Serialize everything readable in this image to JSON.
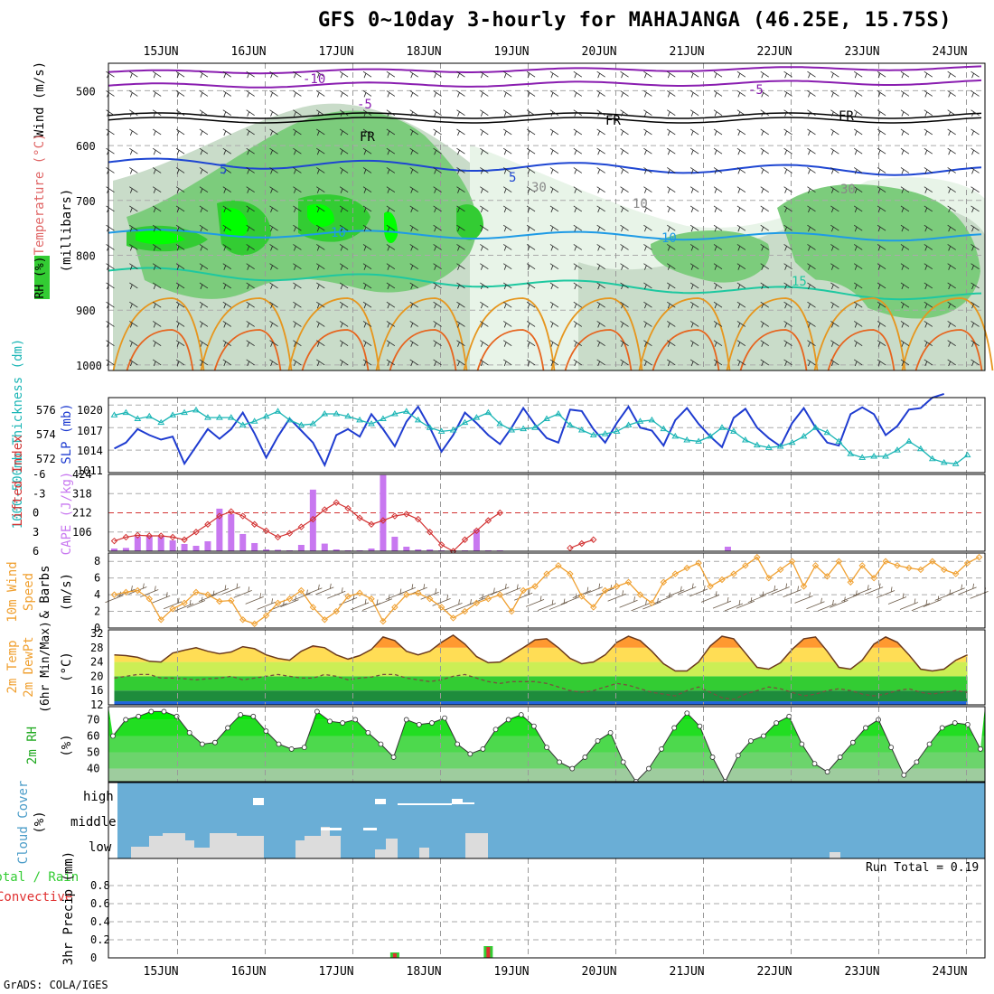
{
  "title": "GFS 0~10day 3-hourly for MAHAJANGA (46.25E, 15.75S)",
  "footer": "GrADS: COLA/IGES",
  "colors": {
    "rh_fill": [
      "#e8f4e8",
      "#c9dcc9",
      "#7ccc7c",
      "#33cc33",
      "#00ff00"
    ],
    "temp_contour_cold": "#8a1eb0",
    "temp_contour_freeze": "#000000",
    "temp_contour_5": "#1e46d2",
    "temp_contour_10": "#1e9be6",
    "temp_contour_15": "#1ec8a0",
    "temp_contour_20": "#e6961e",
    "temp_contour_25": "#e6641e",
    "slp": "#1f3cd0",
    "thickness": "#1ab5b5",
    "lifted_index": "#d23232",
    "cape": "#c878f0",
    "wind": "#f0a030",
    "cloud_bg": "#6aaed6",
    "cloud": "#dcdcdc",
    "rh2m": "#22cc22",
    "precip_total": "#33cc33",
    "precip_conv": "#e03030"
  },
  "chart_data": [
    {
      "type": "contour",
      "name": "upper-air",
      "ylabel_parts": [
        "RH (%)",
        "Temperature (°C)",
        "Wind (m/s)"
      ],
      "ylabel2": "(millibars)",
      "x_dates": [
        "15JUN",
        "16JUN",
        "17JUN",
        "18JUN",
        "19JUN",
        "20JUN",
        "21JUN",
        "22JUN",
        "23JUN",
        "24JUN"
      ],
      "y_ticks": [
        "500",
        "600",
        "700",
        "800",
        "900",
        "1000"
      ],
      "contour_labels": [
        "-10",
        "-5",
        "FR",
        "FR",
        "FR",
        "5",
        "5",
        "10",
        "10",
        "15",
        "30",
        "10",
        "30"
      ]
    },
    {
      "type": "line",
      "name": "slp-thickness",
      "ylabel_left": "1000-500mb Thickness (dm)",
      "ylabel_right": "SLP (mb)",
      "left_ticks": [
        "576",
        "574",
        "572"
      ],
      "right_ticks": [
        "1020",
        "1017",
        "1014",
        "1011"
      ],
      "slp_ylim": [
        1011,
        1021
      ],
      "slp": [
        1014.2,
        1015.0,
        1016.8,
        1016.0,
        1015.4,
        1015.8,
        1012.2,
        1014.5,
        1016.8,
        1015.5,
        1016.8,
        1019.0,
        1016.2,
        1013.0,
        1015.8,
        1018.2,
        1016.6,
        1015.0,
        1012.0,
        1016.0,
        1016.8,
        1015.8,
        1018.8,
        1016.8,
        1014.5,
        1017.8,
        1019.8,
        1017.0,
        1013.8,
        1016.0,
        1019.0,
        1017.6,
        1016.0,
        1014.8,
        1017.0,
        1019.6,
        1017.4,
        1015.6,
        1015.0,
        1019.4,
        1019.2,
        1016.8,
        1015.0,
        1017.6,
        1019.8,
        1017.0,
        1016.6,
        1014.6,
        1018.0,
        1019.6,
        1017.5,
        1015.8,
        1014.4,
        1018.3,
        1019.5,
        1017.0,
        1015.6,
        1014.5,
        1017.6,
        1019.6,
        1017.0,
        1015.0,
        1014.6,
        1018.8,
        1019.7,
        1018.8,
        1016.0,
        1017.2,
        1019.4,
        1019.6,
        1021.0,
        1021.5
      ],
      "thickness_ylim": [
        571,
        577
      ],
      "thickness": [
        575.6,
        575.8,
        575.3,
        575.5,
        575.0,
        575.6,
        575.8,
        576.0,
        575.4,
        575.4,
        575.4,
        574.8,
        575.1,
        575.5,
        575.9,
        575.2,
        574.8,
        574.9,
        575.7,
        575.7,
        575.5,
        575.2,
        574.9,
        575.3,
        575.7,
        575.9,
        575.2,
        574.6,
        574.3,
        574.4,
        575.0,
        575.4,
        575.8,
        574.9,
        574.4,
        574.5,
        574.6,
        575.3,
        575.7,
        574.8,
        574.4,
        574.0,
        574.1,
        574.3,
        574.8,
        575.1,
        575.2,
        574.5,
        573.9,
        573.6,
        573.5,
        573.9,
        574.6,
        574.3,
        573.6,
        573.2,
        573.0,
        573.1,
        573.4,
        573.9,
        574.6,
        574.2,
        573.5,
        572.5,
        572.2,
        572.3,
        572.3,
        572.8,
        573.5,
        572.9,
        572.1,
        571.8,
        571.7,
        572.4
      ]
    },
    {
      "type": "bar+line",
      "name": "cape-lifted-index",
      "ylabel_left": "Lifted Index",
      "ylabel_right": "CAPE (J/kg)",
      "li_ticks": [
        "-6",
        "-3",
        "0",
        "3",
        "6"
      ],
      "li_ylim": [
        -6,
        6
      ],
      "cape_ticks": [
        "424",
        "318",
        "212",
        "106"
      ],
      "cape_ylim": [
        0,
        424
      ],
      "lifted_index": [
        4.4,
        3.8,
        3.5,
        3.6,
        3.6,
        3.8,
        4.2,
        3.0,
        1.8,
        0.5,
        -0.2,
        0.5,
        1.8,
        2.8,
        3.8,
        3.2,
        2.2,
        1.0,
        -0.5,
        -1.6,
        -0.7,
        0.8,
        1.8,
        1.2,
        0.5,
        0.2,
        1.0,
        3.0,
        5.0,
        6.0,
        4.2,
        2.8,
        1.2,
        0.0,
        null,
        null,
        null,
        null,
        null,
        5.5,
        4.8,
        4.2
      ],
      "cape": [
        15,
        18,
        82,
        84,
        80,
        60,
        40,
        30,
        55,
        235,
        205,
        95,
        45,
        10,
        8,
        5,
        35,
        340,
        42,
        10,
        5,
        5,
        15,
        420,
        80,
        25,
        10,
        10,
        5,
        5,
        5,
        120,
        5,
        5,
        0,
        0,
        0,
        0,
        0,
        0,
        0,
        0,
        0,
        0,
        0,
        0,
        0,
        0,
        0,
        0,
        0,
        0,
        0,
        0,
        0,
        0,
        0,
        0,
        0,
        0,
        0,
        0,
        0,
        0,
        0,
        0,
        0,
        0,
        0,
        0,
        0,
        0,
        0,
        0
      ],
      "cape_late": [
        [
          52.5,
          25
        ]
      ]
    },
    {
      "type": "line",
      "name": "10m-wind",
      "ylabel_parts": [
        "10m Wind",
        "Speed",
        "& Barbs"
      ],
      "ylabel_unit": "(m/s)",
      "ylim": [
        0,
        9
      ],
      "y_ticks": [
        "8",
        "6",
        "4",
        "2",
        "0"
      ],
      "speed": [
        4.0,
        4.3,
        4.5,
        3.5,
        1.0,
        2.3,
        3.0,
        4.3,
        4.0,
        3.2,
        3.3,
        1.0,
        0.5,
        1.5,
        3.0,
        3.5,
        4.5,
        2.5,
        1.0,
        2.0,
        3.8,
        4.2,
        3.5,
        0.8,
        2.5,
        4.0,
        4.2,
        3.5,
        2.5,
        1.2,
        2.0,
        3.0,
        3.5,
        4.0,
        2.0,
        4.5,
        5.0,
        6.5,
        7.5,
        6.5,
        3.8,
        2.5,
        4.5,
        5.0,
        5.5,
        4.0,
        3.0,
        5.5,
        6.5,
        7.2,
        7.8,
        5.0,
        5.8,
        6.5,
        7.5,
        8.5,
        6.0,
        7.0,
        8.0,
        5.0,
        7.5,
        6.2,
        8.0,
        5.5,
        7.5,
        6.0,
        8.0,
        7.5,
        7.2,
        7.0,
        8.0,
        7.0,
        6.5,
        7.8,
        8.5
      ]
    },
    {
      "type": "area",
      "name": "2m-temp",
      "ylabel_parts": [
        "2m Temp",
        "2m DewPt",
        "(6hr Min/Max)"
      ],
      "ylabel_unit": "(°C)",
      "ylim": [
        12,
        33
      ],
      "y_ticks": [
        "32",
        "28",
        "24",
        "20",
        "16",
        "12"
      ],
      "temp": [
        26.0,
        25.8,
        25.3,
        24.2,
        24.0,
        26.5,
        27.3,
        28.0,
        27.0,
        26.3,
        26.8,
        28.3,
        27.7,
        26.0,
        25.0,
        24.5,
        27.0,
        28.5,
        28.0,
        26.0,
        24.8,
        25.8,
        27.5,
        31.0,
        30.0,
        27.0,
        26.0,
        27.0,
        29.5,
        31.5,
        29.0,
        25.5,
        23.8,
        24.0,
        26.0,
        28.0,
        30.2,
        30.5,
        28.0,
        25.0,
        23.5,
        24.0,
        26.0,
        29.5,
        31.2,
        30.0,
        27.0,
        23.5,
        21.5,
        21.5,
        24.0,
        28.5,
        31.2,
        30.5,
        26.5,
        22.5,
        22.0,
        23.8,
        27.5,
        30.5,
        31.0,
        27.0,
        22.5,
        22.0,
        24.5,
        29.0,
        31.0,
        29.5,
        26.0,
        22.0,
        21.5,
        22.0,
        24.5,
        26.0
      ],
      "dewpt": [
        19.5,
        20.0,
        20.5,
        20.5,
        19.5,
        19.5,
        19.3,
        19.0,
        19.3,
        19.5,
        20.0,
        19.0,
        19.5,
        20.0,
        20.5,
        20.0,
        19.5,
        19.5,
        20.5,
        20.0,
        19.0,
        19.5,
        19.8,
        20.5,
        20.5,
        19.5,
        19.0,
        18.5,
        19.0,
        20.0,
        20.5,
        19.5,
        18.5,
        18.0,
        18.5,
        18.5,
        18.5,
        18.0,
        17.0,
        16.0,
        15.5,
        16.0,
        17.0,
        18.0,
        17.5,
        16.5,
        15.5,
        15.0,
        14.5,
        16.0,
        17.0,
        15.5,
        14.0,
        13.5,
        15.0,
        16.0,
        17.0,
        16.5,
        15.5,
        14.5,
        15.0,
        16.0,
        16.5,
        16.0,
        15.0,
        14.5,
        15.0,
        16.0,
        16.5,
        15.5,
        15.0,
        15.5,
        16.0,
        15.5
      ]
    },
    {
      "type": "area",
      "name": "2m-rh",
      "ylabel_main": "2m RH",
      "ylabel_unit": "(%)",
      "ylim": [
        32,
        78
      ],
      "y_ticks": [
        "70",
        "60",
        "50",
        "40"
      ],
      "rh": [
        60,
        70,
        72,
        75,
        75,
        72,
        62,
        55,
        56,
        65,
        73,
        72,
        63,
        55,
        52,
        53,
        75,
        69,
        68,
        70,
        62,
        55,
        47,
        70,
        67,
        68,
        71,
        55,
        49,
        52,
        64,
        70,
        73,
        66,
        53,
        44,
        40,
        47,
        57,
        62,
        44,
        32,
        40,
        52,
        65,
        74,
        66,
        47,
        32,
        48,
        57,
        60,
        68,
        72,
        55,
        43,
        38,
        47,
        56,
        65,
        70,
        53,
        36,
        44,
        55,
        65,
        68,
        67,
        52
      ]
    },
    {
      "type": "bar",
      "name": "cloud-cover",
      "ylabel_main": "Cloud Cover",
      "ylabel_unit": "(%)",
      "levels": [
        "high",
        "middle",
        "low"
      ]
    },
    {
      "type": "bar",
      "name": "3hr-precip",
      "ylabel_left": "Total / Rain",
      "ylabel_left2": "Convective",
      "ylabel_right": "3hr Precip (mm)",
      "y_ticks": [
        "0.8",
        "0.6",
        "0.4",
        "0.2",
        "0"
      ],
      "ylim": [
        0,
        1.0
      ],
      "run_total_label": "Run Total = 0.19",
      "precip_total": [
        0,
        0,
        0,
        0,
        0,
        0,
        0,
        0,
        0,
        0,
        0,
        0,
        0,
        0,
        0,
        0,
        0,
        0,
        0,
        0,
        0,
        0,
        0,
        0,
        0.06,
        0,
        0,
        0,
        0,
        0,
        0,
        0,
        0.13,
        0,
        0,
        0,
        0,
        0,
        0,
        0,
        0,
        0,
        0,
        0,
        0,
        0,
        0,
        0,
        0,
        0,
        0,
        0,
        0,
        0,
        0,
        0,
        0,
        0,
        0,
        0,
        0,
        0,
        0,
        0,
        0,
        0,
        0,
        0,
        0,
        0,
        0,
        0,
        0,
        0
      ],
      "precip_conv": [
        0,
        0,
        0,
        0,
        0,
        0,
        0,
        0,
        0,
        0,
        0,
        0,
        0,
        0,
        0,
        0,
        0,
        0,
        0,
        0,
        0,
        0,
        0,
        0,
        0.05,
        0,
        0,
        0,
        0,
        0,
        0,
        0,
        0.12,
        0,
        0,
        0,
        0,
        0,
        0,
        0,
        0,
        0,
        0,
        0,
        0,
        0,
        0,
        0,
        0,
        0,
        0,
        0,
        0,
        0,
        0,
        0,
        0,
        0,
        0,
        0,
        0,
        0,
        0,
        0,
        0,
        0,
        0,
        0,
        0,
        0,
        0,
        0,
        0,
        0
      ]
    }
  ]
}
